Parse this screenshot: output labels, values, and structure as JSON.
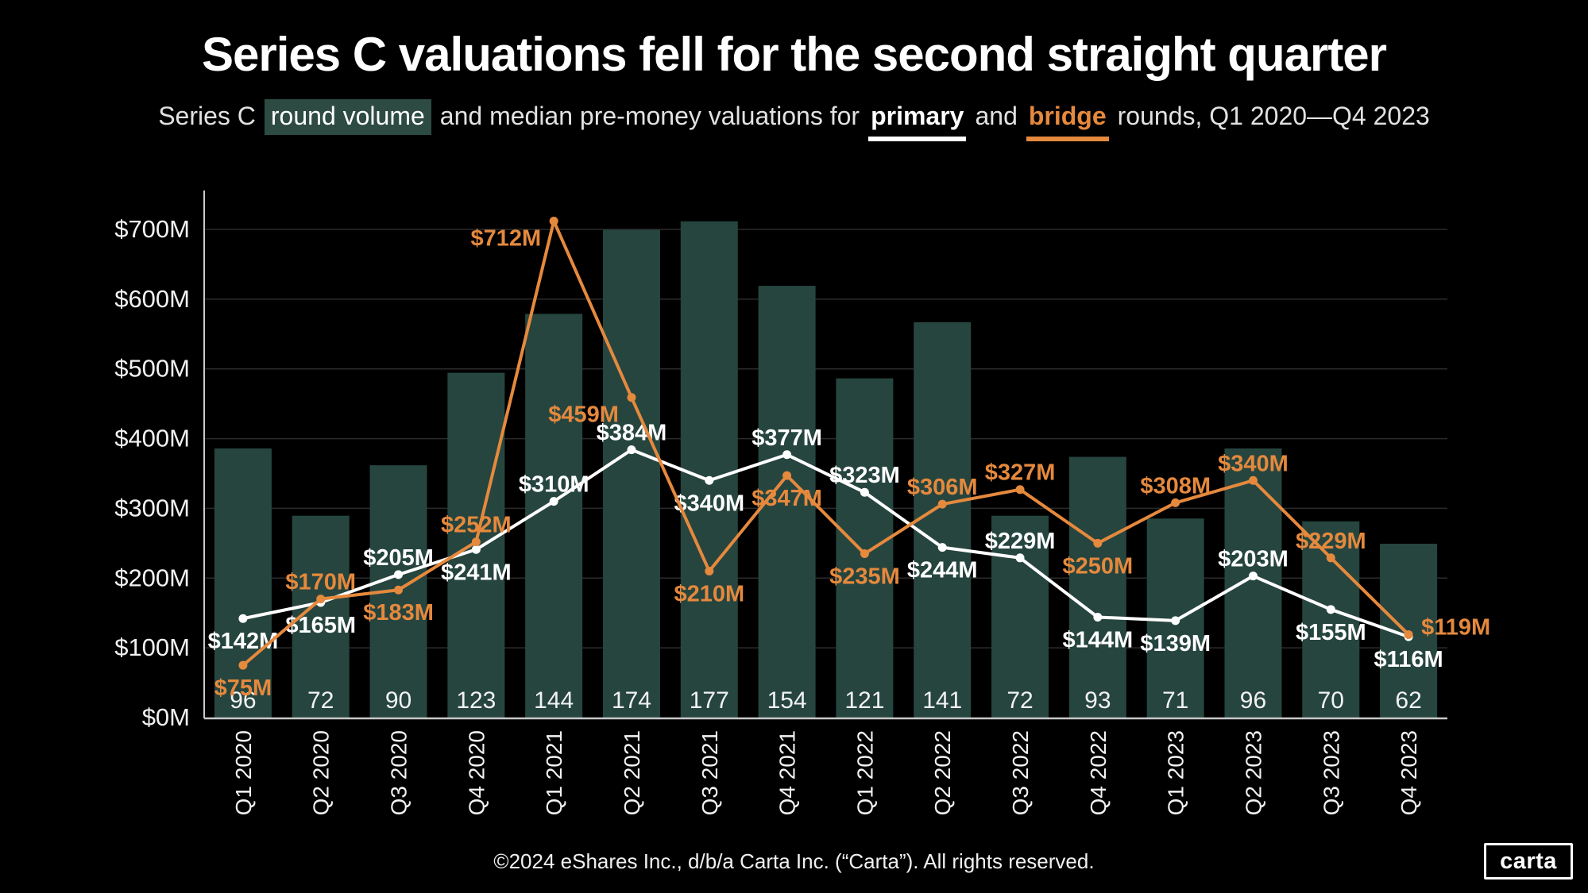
{
  "header": {
    "title": "Series C valuations fell for the second straight quarter",
    "subtitle": {
      "part1": "Series C",
      "highlight": "round volume",
      "part2": "and median pre-money valuations for",
      "primary_label": "primary",
      "part3": "and",
      "bridge_label": "bridge",
      "part4": "rounds, Q1 2020—Q4 2023"
    }
  },
  "footer": {
    "copyright": "©2024 eShares Inc., d/b/a Carta Inc. (“Carta”). All rights reserved.",
    "logo_text": "carta"
  },
  "colors": {
    "background": "#000000",
    "bar": "#26453F",
    "highlight": "#2D4B43",
    "primary_line": "#FFFFFF",
    "bridge_line": "#E5893D",
    "gridline": "#2B2B2B",
    "axis": "#C9C9C9",
    "tick_text": "#F2F2F2",
    "count_text": "#F2F2F2"
  },
  "chart_data": {
    "type": "bar+line",
    "title": "Series C valuations fell for the second straight quarter",
    "categories": [
      "Q1 2020",
      "Q2 2020",
      "Q3 2020",
      "Q4 2020",
      "Q1 2021",
      "Q2 2021",
      "Q3 2021",
      "Q4 2021",
      "Q1 2022",
      "Q2 2022",
      "Q3 2022",
      "Q4 2022",
      "Q1 2023",
      "Q2 2023",
      "Q3 2023",
      "Q4 2023"
    ],
    "bar_series": {
      "name": "round volume",
      "values": [
        96,
        72,
        90,
        123,
        144,
        174,
        177,
        154,
        121,
        141,
        72,
        93,
        71,
        96,
        70,
        62
      ],
      "dollar_axis_scale_per_round": 4.02
    },
    "line_series": [
      {
        "name": "primary",
        "unit": "$M",
        "values": [
          142,
          165,
          205,
          241,
          310,
          384,
          340,
          377,
          323,
          244,
          229,
          144,
          139,
          203,
          155,
          116
        ],
        "labels": [
          "$142M",
          "$165M",
          "$205M",
          "$241M",
          "$310M",
          "$384M",
          "$340M",
          "$377M",
          "$323M",
          "$244M",
          "$229M",
          "$144M",
          "$139M",
          "$203M",
          "$155M",
          "$116M"
        ],
        "label_pos": [
          "below",
          "below",
          "above",
          "below",
          "above",
          "above",
          "below",
          "above",
          "above",
          "below",
          "above",
          "below",
          "below",
          "above",
          "below",
          "below"
        ]
      },
      {
        "name": "bridge",
        "unit": "$M",
        "values": [
          75,
          170,
          183,
          252,
          712,
          459,
          210,
          347,
          235,
          306,
          327,
          250,
          308,
          340,
          229,
          119
        ],
        "labels": [
          "$75M",
          "$170M",
          "$183M",
          "$252M",
          "$712M",
          "$459M",
          "$210M",
          "$347M",
          "$235M",
          "$306M",
          "$327M",
          "$250M",
          "$308M",
          "$340M",
          "$229M",
          "$119M"
        ],
        "label_pos": [
          "below",
          "above",
          "below",
          "above",
          "left",
          "left",
          "below",
          "below",
          "below",
          "above",
          "above",
          "below",
          "above",
          "above",
          "above",
          "right"
        ]
      }
    ],
    "y_axis": {
      "min": 0,
      "max": 700,
      "tick_step": 100,
      "labels": [
        "$0M",
        "$100M",
        "$200M",
        "$300M",
        "$400M",
        "$500M",
        "$600M",
        "$700M"
      ]
    },
    "x_axis": {
      "label_rotation": -90
    },
    "grid": "horizontal",
    "legend_position": "in-subtitle"
  }
}
